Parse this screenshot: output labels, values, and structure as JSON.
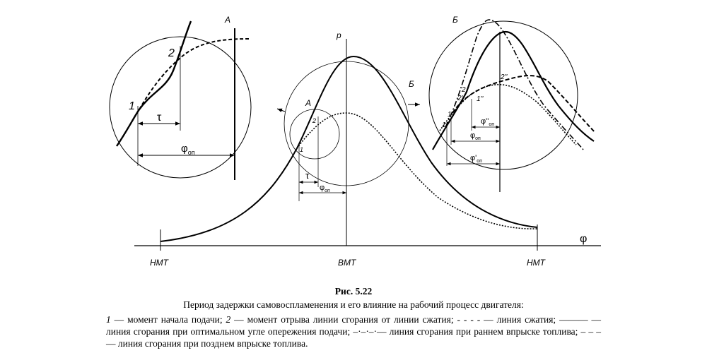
{
  "diagram": {
    "axis": {
      "p": "p",
      "phi": "φ"
    },
    "ticks": [
      "НМТ",
      "ВМТ",
      "НМТ"
    ],
    "main": {
      "a": "А",
      "b": "Б",
      "p1": "1",
      "p2": "2",
      "tau": "τ",
      "phi_op": {
        "symbol": "φ",
        "sub": "оп"
      }
    },
    "zoom_a": {
      "a": "А",
      "p1": "1",
      "p2": "2",
      "tau": "τ",
      "phi_op": {
        "symbol": "φ",
        "sub": "оп"
      }
    },
    "zoom_b": {
      "b": "Б",
      "p1": "1",
      "p1a": "1'",
      "p1b": "1''",
      "p2": "2",
      "p2a": "2'",
      "p2b": "2''",
      "phi_op2": {
        "symbol": "φ''",
        "sub": "оп"
      },
      "phi_op": {
        "symbol": "φ",
        "sub": "оп"
      },
      "phi_op1": {
        "symbol": "φ'",
        "sub": "оп"
      }
    }
  },
  "caption": {
    "figure": "Рис. 5.22",
    "title": "Период задержки самовоспламенения и его влияние на рабочий процесс двигателя:",
    "legend": [
      "1",
      " — момент начала подачи; ",
      "2",
      " — момент отрыва линии сгорания от линии сжатия; - - - - — линия сжатия; ——— — линия сгорания при оптимальном угле опережения подачи; –·–·–·— линия сгорания при раннем впрыске топлива; – – – — линия сгорания при позднем впрыске топлива."
    ]
  }
}
